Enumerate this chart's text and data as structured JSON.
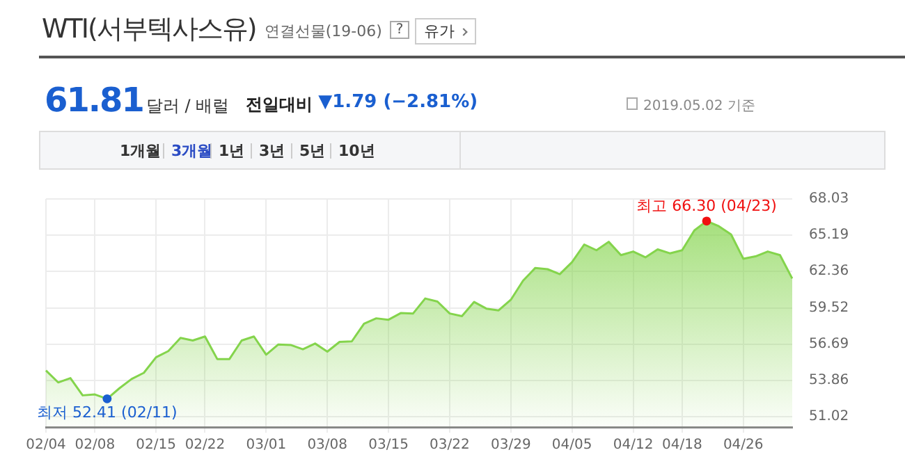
{
  "chart_data": {
    "type": "area",
    "title": "WTI(서부텍사스유)",
    "subtitle": "연결선물(19-06)",
    "categories": [
      "02/04",
      null,
      null,
      null,
      "02/08",
      null,
      null,
      null,
      null,
      "02/15",
      null,
      null,
      null,
      "02/22",
      null,
      null,
      null,
      null,
      "03/01",
      null,
      null,
      null,
      null,
      "03/08",
      null,
      null,
      null,
      null,
      "03/15",
      null,
      null,
      null,
      null,
      "03/22",
      null,
      null,
      null,
      null,
      "03/29",
      null,
      null,
      null,
      null,
      "04/05",
      null,
      null,
      null,
      null,
      "04/12",
      null,
      null,
      null,
      "04/18",
      null,
      null,
      null,
      null,
      "04/26",
      null,
      null,
      null,
      null
    ],
    "series": [
      {
        "color": "#84d44c",
        "values": [
          54.62,
          53.69,
          54.03,
          52.68,
          52.75,
          52.41,
          53.23,
          53.96,
          54.44,
          55.66,
          56.14,
          57.17,
          56.97,
          57.28,
          55.52,
          55.52,
          56.97,
          57.28,
          55.86,
          56.66,
          56.62,
          56.28,
          56.73,
          56.1,
          56.86,
          56.9,
          58.28,
          58.7,
          58.59,
          59.11,
          59.07,
          60.25,
          60.01,
          59.08,
          58.87,
          59.98,
          59.46,
          59.32,
          60.15,
          61.64,
          62.64,
          62.54,
          62.15,
          63.09,
          64.47,
          64.02,
          64.68,
          63.64,
          63.92,
          63.47,
          64.09,
          63.78,
          64.02,
          65.57,
          66.3,
          65.9,
          65.26,
          63.36,
          63.54,
          63.92,
          63.64,
          61.81
        ]
      }
    ],
    "ylim": [
      50.2,
      68.03
    ],
    "yticks": [
      51.02,
      53.86,
      56.69,
      59.52,
      62.36,
      65.19,
      68.03
    ],
    "grid": true,
    "legend": false,
    "annotations": [
      "?",
      "유가",
      "61.81",
      "달러 / 배럴",
      "전일대비",
      "▼1.79 (−2.81%)",
      "2019.05.02 기준",
      "1개월",
      "3개월",
      "1년",
      "3년",
      "5년",
      "10년",
      {
        "text": "최저 52.41 (02/11)",
        "y": 52.41
      },
      {
        "text": "최고 66.30 (04/23)",
        "y": 66.3
      }
    ]
  }
}
